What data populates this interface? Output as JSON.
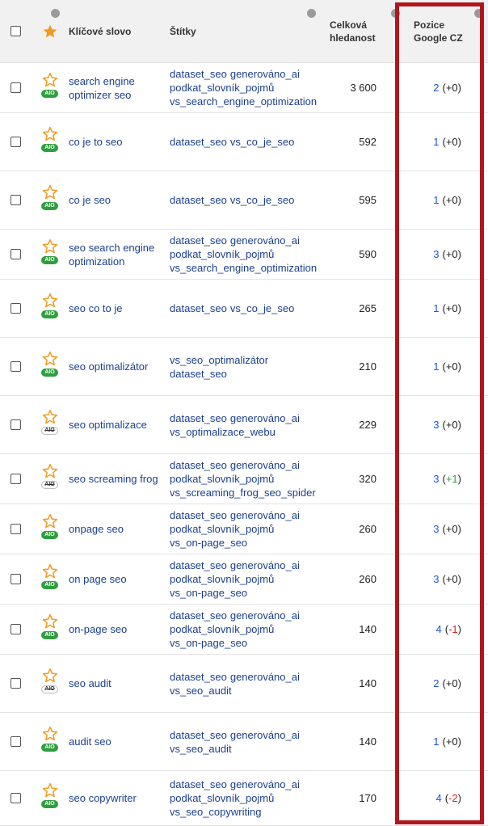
{
  "header": {
    "keyword": "Klíčové slovo",
    "tags": "Štítky",
    "volume": "Celková hledanost",
    "position": "Pozice Google CZ"
  },
  "rows": [
    {
      "keyword": "search engine optimizer seo",
      "aio": {
        "label": "AIO",
        "active": true
      },
      "tags": [
        "dataset_seo",
        "generováno_ai",
        "podkat_slovník_pojmů",
        "vs_search_engine_optimization"
      ],
      "volume": "3 600",
      "position": 2,
      "change": [
        "(",
        "+0",
        ")"
      ]
    },
    {
      "keyword": "co je to seo",
      "aio": {
        "label": "AIO",
        "active": true
      },
      "tags": [
        "dataset_seo",
        "vs_co_je_seo"
      ],
      "volume": "592",
      "position": 1,
      "change": [
        "(",
        "+0",
        ")"
      ]
    },
    {
      "keyword": "co je seo",
      "aio": {
        "label": "AIO",
        "active": true
      },
      "tags": [
        "dataset_seo",
        "vs_co_je_seo"
      ],
      "volume": "595",
      "position": 1,
      "change": [
        "(",
        "+0",
        ")"
      ]
    },
    {
      "keyword": "seo search engine optimization",
      "aio": {
        "label": "AIO",
        "active": true
      },
      "tags": [
        "dataset_seo",
        "generováno_ai",
        "podkat_slovník_pojmů",
        "vs_search_engine_optimization"
      ],
      "volume": "590",
      "position": 3,
      "change": [
        "(",
        "+0",
        ")"
      ]
    },
    {
      "keyword": "seo co to je",
      "aio": {
        "label": "AIO",
        "active": true
      },
      "tags": [
        "dataset_seo",
        "vs_co_je_seo"
      ],
      "volume": "265",
      "position": 1,
      "change": [
        "(",
        "+0",
        ")"
      ]
    },
    {
      "keyword": "seo optimalizátor",
      "aio": {
        "label": "AIO",
        "active": true
      },
      "tags": [
        "vs_seo_optimalizátor",
        "dataset_seo"
      ],
      "volume": "210",
      "position": 1,
      "change": [
        "(",
        "+0",
        ")"
      ]
    },
    {
      "keyword": "seo optimalizace",
      "aio": {
        "label": "AIO",
        "active": false
      },
      "tags": [
        "dataset_seo",
        "generováno_ai",
        "vs_optimalizace_webu"
      ],
      "volume": "229",
      "position": 3,
      "change": [
        "(",
        "+0",
        ")"
      ]
    },
    {
      "keyword": "seo screaming frog",
      "aio": {
        "label": "AIO",
        "active": false
      },
      "tags": [
        "dataset_seo",
        "generováno_ai",
        "podkat_slovník_pojmů",
        "vs_screaming_frog_seo_spider"
      ],
      "volume": "320",
      "position": 3,
      "change": [
        "(",
        "+1",
        ")"
      ]
    },
    {
      "keyword": "onpage seo",
      "aio": {
        "label": "AIO",
        "active": true
      },
      "tags": [
        "dataset_seo",
        "generováno_ai",
        "podkat_slovník_pojmů",
        "vs_on-page_seo"
      ],
      "volume": "260",
      "position": 3,
      "change": [
        "(",
        "+0",
        ")"
      ]
    },
    {
      "keyword": "on page seo",
      "aio": {
        "label": "AIO",
        "active": true
      },
      "tags": [
        "dataset_seo",
        "generováno_ai",
        "podkat_slovník_pojmů",
        "vs_on-page_seo"
      ],
      "volume": "260",
      "position": 3,
      "change": [
        "(",
        "+0",
        ")"
      ]
    },
    {
      "keyword": "on-page seo",
      "aio": {
        "label": "AIO",
        "active": true
      },
      "tags": [
        "dataset_seo",
        "generováno_ai",
        "podkat_slovník_pojmů",
        "vs_on-page_seo"
      ],
      "volume": "140",
      "position": 4,
      "change": [
        "(",
        "-1",
        ")"
      ]
    },
    {
      "keyword": "seo audit",
      "aio": {
        "label": "AIO",
        "active": false
      },
      "tags": [
        "dataset_seo",
        "generováno_ai",
        "vs_seo_audit"
      ],
      "volume": "140",
      "position": 2,
      "change": [
        "(",
        "+0",
        ")"
      ]
    },
    {
      "keyword": "audit seo",
      "aio": {
        "label": "AIO",
        "active": true
      },
      "tags": [
        "dataset_seo",
        "generováno_ai",
        "vs_seo_audit"
      ],
      "volume": "140",
      "position": 1,
      "change": [
        "(",
        "+0",
        ")"
      ]
    },
    {
      "keyword": "seo copywriter",
      "aio": {
        "label": "AIO",
        "active": true
      },
      "tags": [
        "dataset_seo",
        "generováno_ai",
        "podkat_slovník_pojmů",
        "vs_seo_copywriting"
      ],
      "volume": "170",
      "position": 4,
      "change": [
        "(",
        "-2",
        ")"
      ]
    }
  ]
}
